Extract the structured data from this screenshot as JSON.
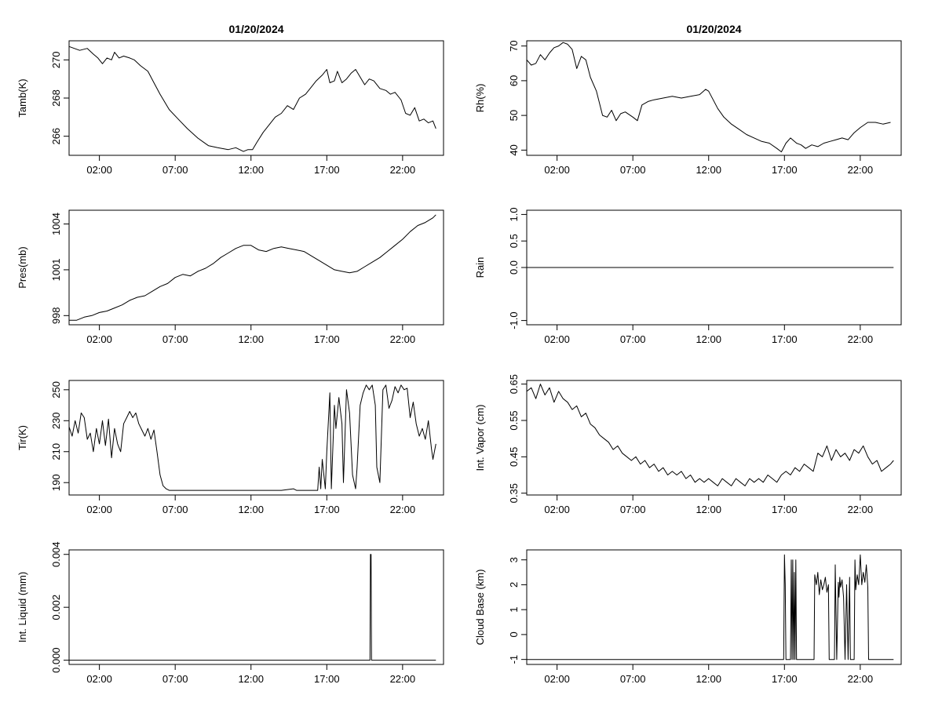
{
  "chart_data": [
    {
      "type": "line",
      "title": "01/20/2024",
      "ylabel": "Tamb(K)",
      "xlim": [
        0,
        24.7
      ],
      "ylim": [
        265,
        271
      ],
      "xticks": [
        2,
        7,
        12,
        17,
        22
      ],
      "xtick_labels": [
        "02:00",
        "07:00",
        "12:00",
        "17:00",
        "22:00"
      ],
      "yticks": [
        266,
        268,
        270
      ],
      "ytick_labels": [
        "266",
        "268",
        "270"
      ],
      "series": [
        {
          "x": [
            0,
            0.7,
            1.2,
            1.6,
            1.9,
            2.2,
            2.5,
            2.8,
            3.0,
            3.3,
            3.6,
            4.0,
            4.3,
            4.7,
            5.2,
            5.6,
            6.0,
            6.6,
            7.2,
            7.8,
            8.5,
            9.2,
            9.8,
            10.5,
            11.0,
            11.5,
            11.8,
            12.1,
            12.4,
            12.8,
            13.2,
            13.6,
            14.0,
            14.4,
            14.8,
            15.2,
            15.6,
            16.0,
            16.3,
            16.7,
            17.0,
            17.2,
            17.5,
            17.7,
            18.0,
            18.3,
            18.6,
            18.9,
            19.2,
            19.5,
            19.8,
            20.1,
            20.5,
            20.9,
            21.2,
            21.5,
            21.9,
            22.2,
            22.5,
            22.8,
            23.1,
            23.4,
            23.7,
            24.0,
            24.2
          ],
          "y": [
            270.7,
            270.5,
            270.6,
            270.3,
            270.1,
            269.8,
            270.1,
            270.0,
            270.4,
            270.1,
            270.2,
            270.1,
            270.0,
            269.7,
            269.4,
            268.8,
            268.2,
            267.4,
            266.9,
            266.4,
            265.9,
            265.5,
            265.4,
            265.3,
            265.4,
            265.2,
            265.3,
            265.3,
            265.7,
            266.2,
            266.6,
            267.0,
            267.2,
            267.6,
            267.4,
            268.0,
            268.2,
            268.6,
            268.9,
            269.2,
            269.5,
            268.8,
            268.9,
            269.4,
            268.8,
            269.0,
            269.3,
            269.5,
            269.1,
            268.7,
            269.0,
            268.9,
            268.5,
            268.4,
            268.2,
            268.3,
            267.9,
            267.2,
            267.1,
            267.5,
            266.8,
            266.9,
            266.7,
            266.8,
            266.4
          ]
        }
      ]
    },
    {
      "type": "line",
      "title": "01/20/2024",
      "ylabel": "Rh(%)",
      "xlim": [
        0,
        24.7
      ],
      "ylim": [
        38.5,
        71.5
      ],
      "xticks": [
        2,
        7,
        12,
        17,
        22
      ],
      "xtick_labels": [
        "02:00",
        "07:00",
        "12:00",
        "17:00",
        "22:00"
      ],
      "yticks": [
        40,
        50,
        60,
        70
      ],
      "ytick_labels": [
        "40",
        "50",
        "60",
        "70"
      ],
      "series": [
        {
          "x": [
            0,
            0.3,
            0.6,
            0.9,
            1.2,
            1.5,
            1.8,
            2.1,
            2.4,
            2.7,
            3.0,
            3.3,
            3.6,
            3.9,
            4.2,
            4.6,
            5.0,
            5.3,
            5.6,
            5.9,
            6.2,
            6.5,
            7.0,
            7.3,
            7.6,
            8.0,
            8.4,
            9.0,
            9.6,
            10.2,
            10.8,
            11.4,
            11.8,
            12.0,
            12.3,
            12.6,
            13.0,
            13.5,
            14.0,
            14.5,
            15.0,
            15.5,
            16.0,
            16.5,
            16.8,
            17.1,
            17.4,
            17.8,
            18.1,
            18.4,
            18.8,
            19.2,
            19.6,
            20.0,
            20.4,
            20.8,
            21.2,
            21.6,
            22.0,
            22.5,
            23.0,
            23.5,
            24.0
          ],
          "y": [
            66.0,
            64.5,
            65.0,
            67.5,
            66.0,
            68.0,
            69.5,
            70.0,
            71.0,
            70.5,
            69.0,
            63.5,
            67.0,
            66.0,
            61.0,
            57.0,
            50.0,
            49.5,
            51.5,
            48.5,
            50.5,
            51.0,
            49.5,
            48.5,
            53.0,
            54.0,
            54.5,
            55.0,
            55.5,
            55.0,
            55.5,
            56.0,
            57.5,
            57.0,
            54.5,
            52.0,
            49.5,
            47.5,
            46.0,
            44.5,
            43.5,
            42.5,
            42.0,
            40.5,
            39.5,
            42.0,
            43.5,
            42.0,
            41.5,
            40.5,
            41.5,
            41.0,
            42.0,
            42.5,
            43.0,
            43.5,
            43.0,
            45.0,
            46.5,
            48.0,
            48.0,
            47.5,
            48.0
          ]
        }
      ]
    },
    {
      "type": "line",
      "ylabel": "Pres(mb)",
      "xlim": [
        0,
        24.7
      ],
      "ylim": [
        997.4,
        1004.9
      ],
      "xticks": [
        2,
        7,
        12,
        17,
        22
      ],
      "xtick_labels": [
        "02:00",
        "07:00",
        "12:00",
        "17:00",
        "22:00"
      ],
      "yticks": [
        998,
        1001,
        1004
      ],
      "ytick_labels": [
        "998",
        "1001",
        "1004"
      ],
      "series": [
        {
          "x": [
            0,
            0.5,
            1.0,
            1.5,
            2.0,
            2.5,
            3.0,
            3.5,
            4.0,
            4.5,
            5.0,
            5.5,
            6.0,
            6.5,
            7.0,
            7.5,
            8.0,
            8.5,
            9.0,
            9.5,
            10.0,
            10.5,
            11.0,
            11.5,
            12.0,
            12.5,
            13.0,
            13.5,
            14.0,
            14.5,
            15.0,
            15.5,
            16.0,
            16.5,
            17.0,
            17.5,
            18.0,
            18.5,
            19.0,
            19.5,
            20.0,
            20.5,
            21.0,
            21.5,
            22.0,
            22.5,
            23.0,
            23.5,
            24.0,
            24.2
          ],
          "y": [
            997.7,
            997.7,
            997.9,
            998.0,
            998.2,
            998.3,
            998.5,
            998.7,
            999.0,
            999.2,
            999.3,
            999.6,
            999.9,
            1000.1,
            1000.5,
            1000.7,
            1000.6,
            1000.9,
            1001.1,
            1001.4,
            1001.8,
            1002.1,
            1002.4,
            1002.6,
            1002.6,
            1002.3,
            1002.2,
            1002.4,
            1002.5,
            1002.4,
            1002.3,
            1002.2,
            1001.9,
            1001.6,
            1001.3,
            1001.0,
            1000.9,
            1000.8,
            1000.9,
            1001.2,
            1001.5,
            1001.8,
            1002.2,
            1002.6,
            1003.0,
            1003.5,
            1003.9,
            1004.1,
            1004.4,
            1004.6
          ]
        }
      ]
    },
    {
      "type": "line",
      "ylabel": "Rain",
      "xlim": [
        0,
        24.7
      ],
      "ylim": [
        -1.08,
        1.08
      ],
      "xticks": [
        2,
        7,
        12,
        17,
        22
      ],
      "xtick_labels": [
        "02:00",
        "07:00",
        "12:00",
        "17:00",
        "22:00"
      ],
      "yticks": [
        -1.0,
        0.0,
        0.5,
        1.0
      ],
      "ytick_labels": [
        "-1.0",
        "0.0",
        "0.5",
        "1.0"
      ],
      "series": [
        {
          "x": [
            0,
            24.2
          ],
          "y": [
            0,
            0
          ]
        }
      ]
    },
    {
      "type": "line",
      "ylabel": "Tir(K)",
      "xlim": [
        0,
        24.7
      ],
      "ylim": [
        182,
        256
      ],
      "xticks": [
        2,
        7,
        12,
        17,
        22
      ],
      "xtick_labels": [
        "02:00",
        "07:00",
        "12:00",
        "17:00",
        "22:00"
      ],
      "yticks": [
        190,
        210,
        230,
        250
      ],
      "ytick_labels": [
        "190",
        "210",
        "230",
        "250"
      ],
      "series": [
        {
          "x": [
            0,
            0.2,
            0.4,
            0.6,
            0.8,
            1.0,
            1.2,
            1.4,
            1.6,
            1.8,
            2.0,
            2.2,
            2.4,
            2.6,
            2.8,
            3.0,
            3.2,
            3.4,
            3.6,
            3.8,
            4.0,
            4.2,
            4.4,
            4.6,
            4.8,
            5.0,
            5.2,
            5.4,
            5.6,
            5.8,
            6.0,
            6.2,
            6.4,
            6.6,
            6.8,
            7.0,
            8.0,
            9.0,
            10.0,
            11.0,
            12.0,
            13.0,
            14.0,
            14.8,
            15.0,
            15.6,
            16.0,
            16.4,
            16.5,
            16.6,
            16.7,
            16.9,
            17.0,
            17.2,
            17.3,
            17.5,
            17.6,
            17.8,
            18.0,
            18.1,
            18.3,
            18.5,
            18.7,
            18.9,
            19.0,
            19.2,
            19.4,
            19.6,
            19.8,
            20.0,
            20.2,
            20.3,
            20.5,
            20.7,
            20.9,
            21.1,
            21.3,
            21.5,
            21.7,
            21.9,
            22.1,
            22.3,
            22.5,
            22.7,
            22.9,
            23.1,
            23.3,
            23.5,
            23.7,
            23.9,
            24.0,
            24.2
          ],
          "y": [
            226,
            220,
            230,
            222,
            235,
            232,
            218,
            222,
            210,
            225,
            215,
            230,
            214,
            231,
            206,
            225,
            215,
            210,
            228,
            232,
            236,
            232,
            235,
            228,
            224,
            220,
            225,
            218,
            224,
            210,
            195,
            188,
            186,
            185,
            185,
            185,
            185,
            185,
            185,
            185,
            185,
            185,
            185,
            186,
            185,
            185,
            185,
            185,
            200,
            186,
            205,
            186,
            210,
            248,
            186,
            240,
            225,
            245,
            228,
            190,
            250,
            235,
            195,
            186,
            200,
            240,
            248,
            253,
            250,
            253,
            240,
            200,
            190,
            250,
            253,
            238,
            243,
            252,
            248,
            253,
            250,
            251,
            232,
            242,
            228,
            220,
            225,
            218,
            230,
            212,
            205,
            215
          ]
        }
      ]
    },
    {
      "type": "line",
      "ylabel": "Int. Vapor (cm)",
      "xlim": [
        0,
        24.7
      ],
      "ylim": [
        0.345,
        0.66
      ],
      "xticks": [
        2,
        7,
        12,
        17,
        22
      ],
      "xtick_labels": [
        "02:00",
        "07:00",
        "12:00",
        "17:00",
        "22:00"
      ],
      "yticks": [
        0.35,
        0.45,
        0.55,
        0.65
      ],
      "ytick_labels": [
        "0.35",
        "0.45",
        "0.55",
        "0.65"
      ],
      "series": [
        {
          "x": [
            0,
            0.3,
            0.6,
            0.9,
            1.2,
            1.5,
            1.8,
            2.1,
            2.4,
            2.7,
            3.0,
            3.3,
            3.6,
            3.9,
            4.2,
            4.5,
            4.8,
            5.1,
            5.4,
            5.7,
            6.0,
            6.3,
            6.6,
            6.9,
            7.2,
            7.5,
            7.8,
            8.1,
            8.4,
            8.7,
            9.0,
            9.3,
            9.6,
            9.9,
            10.2,
            10.5,
            10.8,
            11.1,
            11.4,
            11.7,
            12.0,
            12.3,
            12.6,
            12.9,
            13.2,
            13.5,
            13.8,
            14.1,
            14.4,
            14.7,
            15.0,
            15.3,
            15.6,
            15.9,
            16.2,
            16.5,
            16.8,
            17.1,
            17.4,
            17.7,
            18.0,
            18.3,
            18.6,
            18.9,
            19.2,
            19.5,
            19.8,
            20.1,
            20.4,
            20.7,
            21.0,
            21.3,
            21.6,
            21.9,
            22.2,
            22.5,
            22.8,
            23.1,
            23.4,
            23.7,
            24.0,
            24.2
          ],
          "y": [
            0.63,
            0.64,
            0.61,
            0.65,
            0.62,
            0.64,
            0.6,
            0.63,
            0.61,
            0.6,
            0.58,
            0.59,
            0.56,
            0.57,
            0.54,
            0.53,
            0.51,
            0.5,
            0.49,
            0.47,
            0.48,
            0.46,
            0.45,
            0.44,
            0.45,
            0.43,
            0.44,
            0.42,
            0.43,
            0.41,
            0.42,
            0.4,
            0.41,
            0.4,
            0.41,
            0.39,
            0.4,
            0.38,
            0.39,
            0.38,
            0.39,
            0.38,
            0.37,
            0.39,
            0.38,
            0.37,
            0.39,
            0.38,
            0.37,
            0.39,
            0.38,
            0.39,
            0.38,
            0.4,
            0.39,
            0.38,
            0.4,
            0.41,
            0.4,
            0.42,
            0.41,
            0.43,
            0.42,
            0.41,
            0.46,
            0.45,
            0.48,
            0.44,
            0.47,
            0.45,
            0.46,
            0.44,
            0.47,
            0.46,
            0.48,
            0.45,
            0.43,
            0.44,
            0.41,
            0.42,
            0.43,
            0.44
          ]
        }
      ]
    },
    {
      "type": "line",
      "ylabel": "Int. Liquid (mm)",
      "xlim": [
        0,
        24.7
      ],
      "ylim": [
        -0.00016,
        0.00417
      ],
      "xticks": [
        2,
        7,
        12,
        17,
        22
      ],
      "xtick_labels": [
        "02:00",
        "07:00",
        "12:00",
        "17:00",
        "22:00"
      ],
      "yticks": [
        0.0,
        0.002,
        0.004
      ],
      "ytick_labels": [
        "0.000",
        "0.002",
        "0.004"
      ],
      "series": [
        {
          "x": [
            0,
            19.85,
            19.88,
            19.92,
            19.95,
            24.2
          ],
          "y": [
            0,
            0,
            0.004,
            0.004,
            0,
            0
          ]
        }
      ]
    },
    {
      "type": "line",
      "ylabel": "Cloud Base (km)",
      "xlim": [
        0,
        24.7
      ],
      "ylim": [
        -1.2,
        3.4
      ],
      "xticks": [
        2,
        7,
        12,
        17,
        22
      ],
      "xtick_labels": [
        "02:00",
        "07:00",
        "12:00",
        "17:00",
        "22:00"
      ],
      "yticks": [
        -1,
        0,
        1,
        2,
        3
      ],
      "ytick_labels": [
        "-1",
        "0",
        "1",
        "2",
        "3"
      ],
      "series": [
        {
          "x": [
            0,
            16.95,
            17.0,
            17.05,
            17.1,
            17.15,
            17.4,
            17.45,
            17.5,
            17.55,
            17.6,
            17.65,
            17.7,
            17.75,
            17.8,
            17.85,
            18.95,
            19.0,
            19.1,
            19.2,
            19.3,
            19.4,
            19.5,
            19.6,
            19.7,
            19.8,
            19.9,
            19.95,
            20.3,
            20.35,
            20.45,
            20.55,
            20.6,
            20.65,
            20.7,
            20.8,
            20.9,
            21.0,
            21.1,
            21.2,
            21.3,
            21.35,
            21.6,
            21.65,
            21.7,
            21.8,
            21.9,
            22.0,
            22.1,
            22.2,
            22.3,
            22.4,
            22.5,
            22.55,
            24.2
          ],
          "y": [
            -1,
            -1,
            3.2,
            2.0,
            -1,
            -1,
            -1,
            3.0,
            -1,
            3.0,
            -1,
            2.5,
            -1,
            3.0,
            -1,
            -1,
            -1,
            2.4,
            2.0,
            2.5,
            1.6,
            2.2,
            1.8,
            2.0,
            2.3,
            1.7,
            2.0,
            -1,
            -1,
            2.8,
            -1,
            2.1,
            1.5,
            2.3,
            1.9,
            2.2,
            1.5,
            -1,
            2.0,
            -1,
            2.3,
            -1,
            -1,
            3.0,
            1.8,
            2.4,
            2.0,
            3.2,
            2.0,
            2.5,
            2.1,
            2.8,
            1.9,
            -1,
            -1
          ]
        }
      ]
    }
  ]
}
